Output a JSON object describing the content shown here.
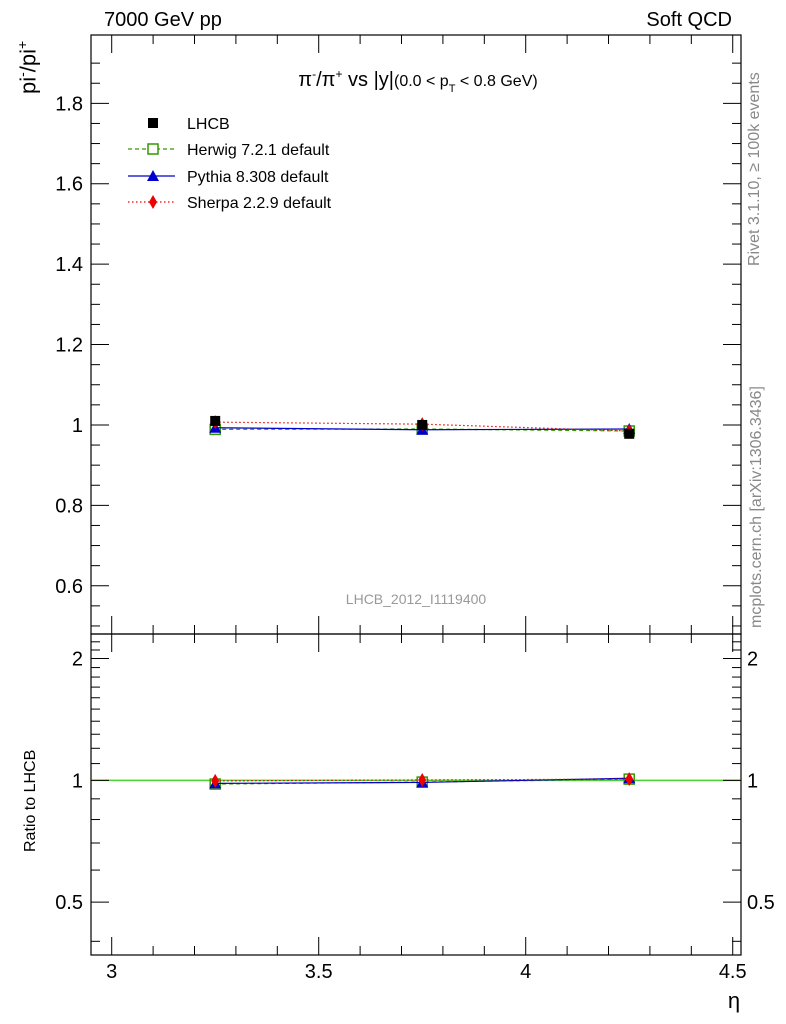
{
  "header": {
    "left": "7000 GeV pp",
    "right": "Soft QCD"
  },
  "side_labels": {
    "rivet": "Rivet 3.1.10, ≥ 100k events",
    "mcplots": "mcplots.cern.ch [arXiv:1306.3436]"
  },
  "chart_data": [
    {
      "type": "scatter",
      "panel": "main",
      "title_parts": {
        "pi": "π",
        "minus": "-",
        "slash": "/π",
        "plus": "+",
        "vs": " vs |y|",
        "range": "(0.0 < p",
        "sub": "T",
        "range_end": " < 0.8 GeV)"
      },
      "ylabel_parts": {
        "base1": "pi",
        "sup1": "-",
        "base2": "/pi",
        "sup2": "+"
      },
      "watermark": "LHCB_2012_I1119400",
      "xlim": [
        2.95,
        4.52
      ],
      "ylim": [
        0.48,
        1.97
      ],
      "yticks": [
        0.6,
        0.8,
        1.0,
        1.2,
        1.4,
        1.6,
        1.8
      ],
      "ytick_labels": [
        "0.6",
        "0.8",
        "1",
        "1.2",
        "1.4",
        "1.6",
        "1.8"
      ],
      "legend_position": "top-left",
      "series": [
        {
          "name": "LHCB",
          "color": "#000000",
          "marker": "square-filled",
          "line": "none",
          "x": [
            3.25,
            3.75,
            4.25
          ],
          "y": [
            1.01,
            1.0,
            0.978
          ]
        },
        {
          "name": "Herwig 7.2.1 default",
          "color": "#339900",
          "marker": "square-open",
          "line": "dashed",
          "x": [
            3.25,
            3.75,
            4.25
          ],
          "y": [
            0.989,
            0.99,
            0.985
          ]
        },
        {
          "name": "Pythia 8.308 default",
          "color": "#0000cc",
          "marker": "triangle",
          "line": "solid",
          "x": [
            3.25,
            3.75,
            4.25
          ],
          "y": [
            0.993,
            0.988,
            0.99
          ]
        },
        {
          "name": "Sherpa 2.2.9 default",
          "color": "#ee0000",
          "marker": "diamond",
          "line": "dotted",
          "x": [
            3.25,
            3.75,
            4.25
          ],
          "y": [
            1.007,
            1.002,
            0.985
          ]
        }
      ]
    },
    {
      "type": "line",
      "panel": "ratio",
      "ylabel": "Ratio to LHCB",
      "xlabel": "η",
      "xlim": [
        2.95,
        4.52
      ],
      "ylim": [
        0.37,
        2.3
      ],
      "log_y": true,
      "yticks": [
        0.5,
        1,
        2
      ],
      "ytick_labels": [
        "0.5",
        "1",
        "2"
      ],
      "xticks": [
        3,
        3.5,
        4,
        4.5
      ],
      "xtick_labels": [
        "3",
        "3.5",
        "4",
        "4.5"
      ],
      "band": {
        "color": "#ffff66",
        "edge_color": "#33cc33",
        "low": 0.992,
        "high": 1.008
      },
      "series": [
        {
          "name": "Herwig 7.2.1 default",
          "color": "#339900",
          "marker": "square-open",
          "line": "dashed",
          "x": [
            3.25,
            3.75,
            4.25
          ],
          "y": [
            0.979,
            0.99,
            1.007
          ]
        },
        {
          "name": "Pythia 8.308 default",
          "color": "#0000cc",
          "marker": "triangle",
          "line": "solid",
          "x": [
            3.25,
            3.75,
            4.25
          ],
          "y": [
            0.983,
            0.988,
            1.012
          ]
        },
        {
          "name": "Sherpa 2.2.9 default",
          "color": "#ee0000",
          "marker": "diamond",
          "line": "dotted",
          "x": [
            3.25,
            3.75,
            4.25
          ],
          "y": [
            0.997,
            1.002,
            1.007
          ]
        }
      ]
    }
  ]
}
